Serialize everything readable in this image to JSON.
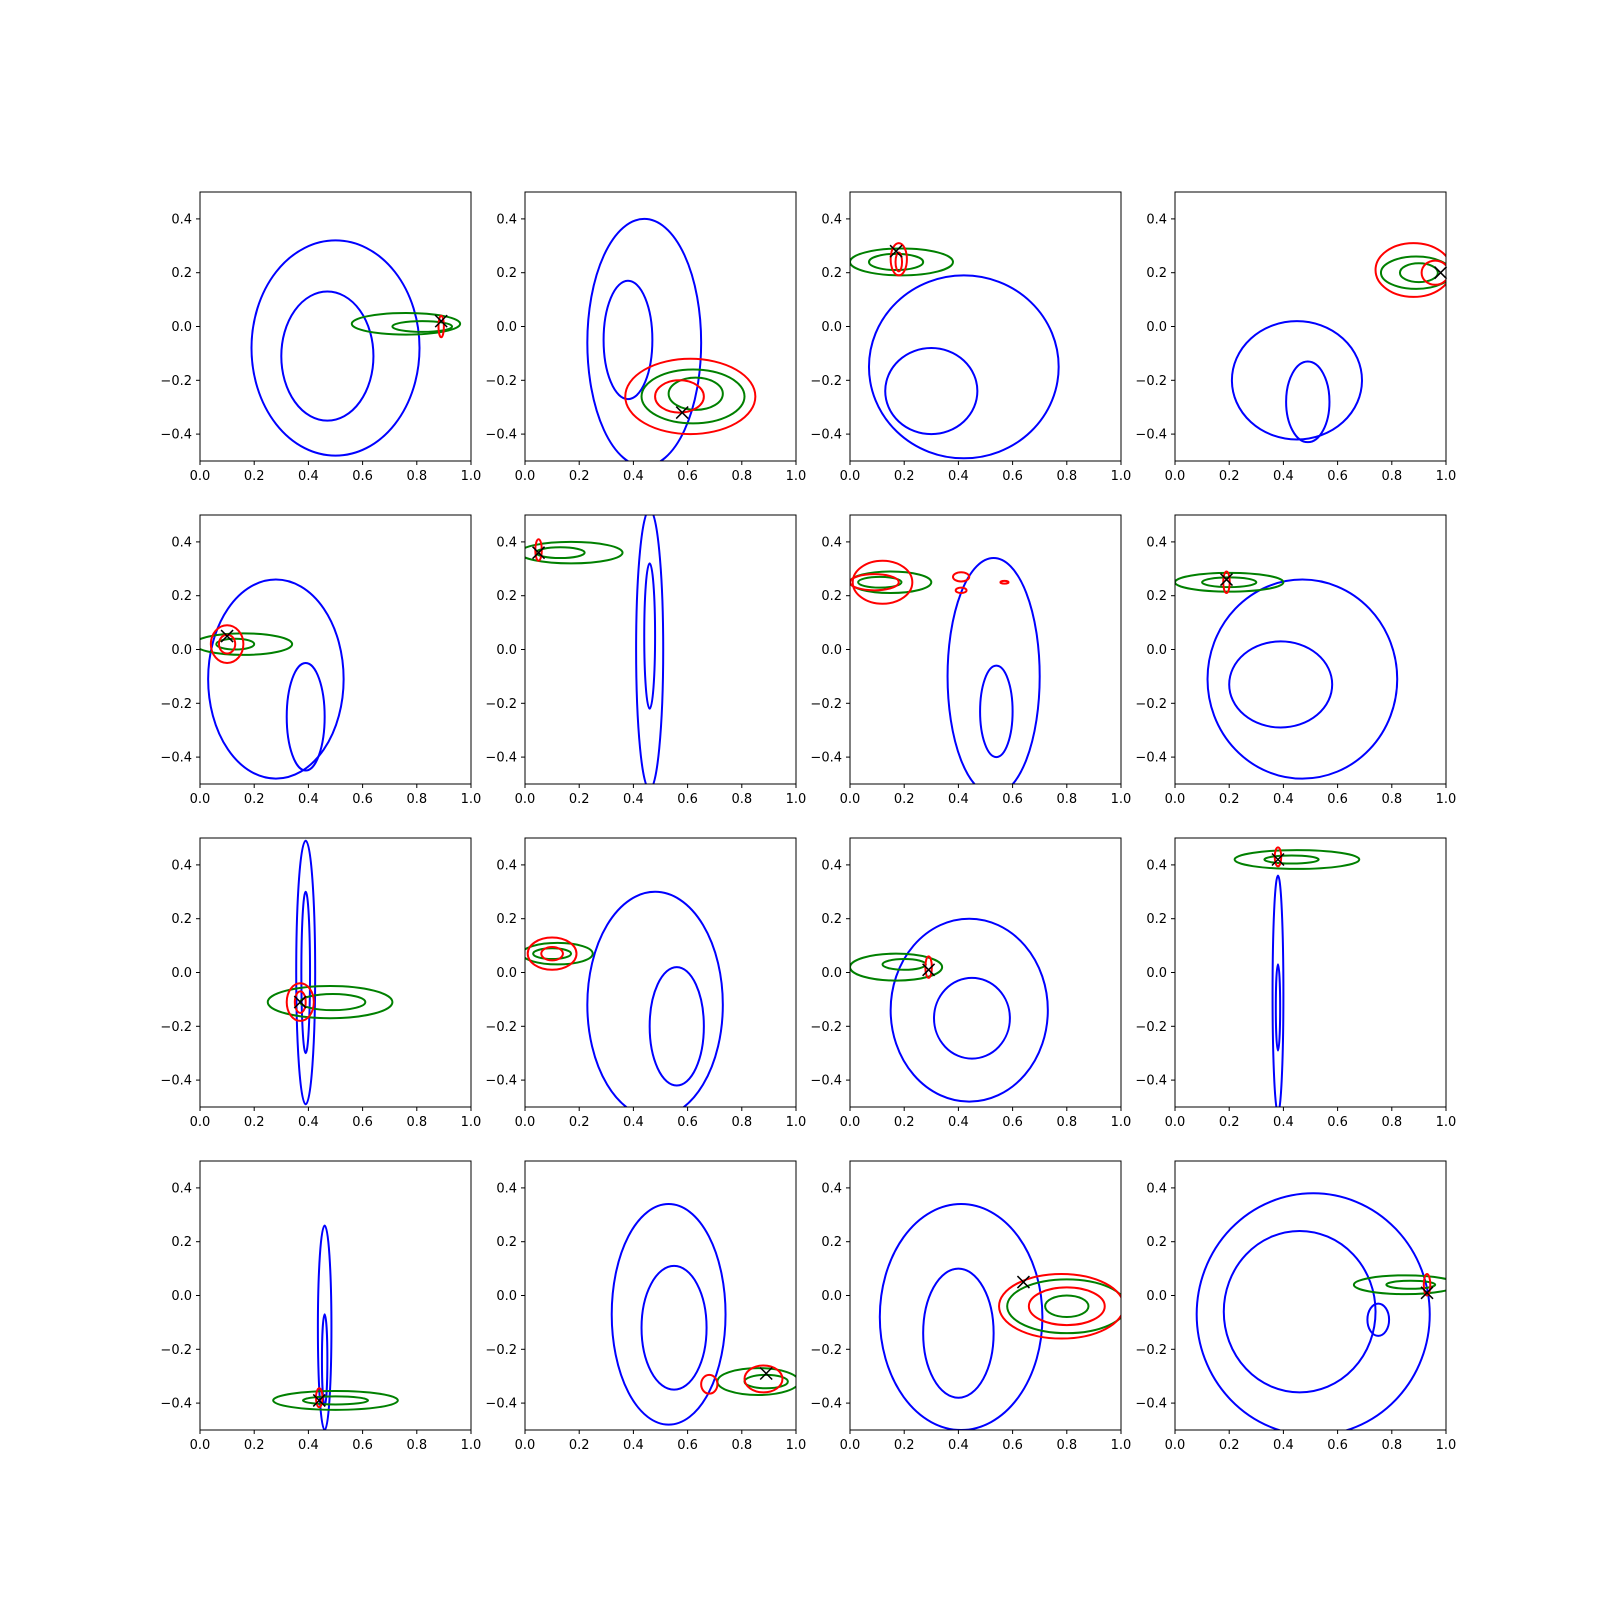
{
  "figure": {
    "rows": 4,
    "cols": 4
  },
  "axes": {
    "xlim": [
      0,
      1
    ],
    "ylim": [
      -0.5,
      0.5
    ],
    "xticks": [
      0.0,
      0.2,
      0.4,
      0.6,
      0.8,
      1.0
    ],
    "yticks": [
      -0.4,
      -0.2,
      0.0,
      0.2,
      0.4
    ],
    "xtick_labels": [
      "0.0",
      "0.2",
      "0.4",
      "0.6",
      "0.8",
      "1.0"
    ],
    "ytick_labels": [
      "−0.4",
      "−0.2",
      "0.0",
      "0.2",
      "0.4"
    ]
  },
  "colors": {
    "blue": "#0000ff",
    "green": "#008000",
    "red": "#ff0000",
    "marker": "#000000"
  },
  "chart_data": [
    {
      "type": "contour",
      "marker": [
        0.89,
        0.02
      ],
      "blue": [
        {
          "cx": 0.5,
          "cy": -0.08,
          "rx": 0.31,
          "ry": 0.4
        },
        {
          "cx": 0.47,
          "cy": -0.11,
          "rx": 0.17,
          "ry": 0.24
        }
      ],
      "green": [
        {
          "cx": 0.76,
          "cy": 0.01,
          "rx": 0.2,
          "ry": 0.04
        },
        {
          "cx": 0.82,
          "cy": 0.0,
          "rx": 0.11,
          "ry": 0.02
        }
      ],
      "red": [
        {
          "cx": 0.89,
          "cy": 0.0,
          "rx": 0.01,
          "ry": 0.04
        }
      ]
    },
    {
      "type": "contour",
      "marker": [
        0.58,
        -0.32
      ],
      "blue": [
        {
          "cx": 0.44,
          "cy": -0.06,
          "rx": 0.21,
          "ry": 0.46
        },
        {
          "cx": 0.38,
          "cy": -0.05,
          "rx": 0.09,
          "ry": 0.22
        }
      ],
      "green": [
        {
          "cx": 0.62,
          "cy": -0.26,
          "rx": 0.19,
          "ry": 0.1
        },
        {
          "cx": 0.63,
          "cy": -0.25,
          "rx": 0.1,
          "ry": 0.06
        }
      ],
      "red": [
        {
          "cx": 0.61,
          "cy": -0.26,
          "rx": 0.24,
          "ry": 0.14
        },
        {
          "cx": 0.57,
          "cy": -0.26,
          "rx": 0.09,
          "ry": 0.06
        }
      ]
    },
    {
      "type": "contour",
      "marker": [
        0.17,
        0.28
      ],
      "blue": [
        {
          "cx": 0.42,
          "cy": -0.15,
          "rx": 0.35,
          "ry": 0.34
        },
        {
          "cx": 0.3,
          "cy": -0.24,
          "rx": 0.17,
          "ry": 0.16
        }
      ],
      "green": [
        {
          "cx": 0.19,
          "cy": 0.24,
          "rx": 0.19,
          "ry": 0.05
        },
        {
          "cx": 0.17,
          "cy": 0.24,
          "rx": 0.1,
          "ry": 0.03
        }
      ],
      "red": [
        {
          "cx": 0.18,
          "cy": 0.25,
          "rx": 0.03,
          "ry": 0.06
        },
        {
          "cx": 0.18,
          "cy": 0.24,
          "rx": 0.012,
          "ry": 0.035
        }
      ]
    },
    {
      "type": "contour",
      "marker": [
        0.98,
        0.2
      ],
      "blue": [
        {
          "cx": 0.45,
          "cy": -0.2,
          "rx": 0.24,
          "ry": 0.22
        },
        {
          "cx": 0.49,
          "cy": -0.28,
          "rx": 0.08,
          "ry": 0.15
        }
      ],
      "green": [
        {
          "cx": 0.89,
          "cy": 0.2,
          "rx": 0.13,
          "ry": 0.06
        },
        {
          "cx": 0.9,
          "cy": 0.2,
          "rx": 0.07,
          "ry": 0.035
        }
      ],
      "red": [
        {
          "cx": 0.88,
          "cy": 0.21,
          "rx": 0.14,
          "ry": 0.1
        },
        {
          "cx": 0.96,
          "cy": 0.2,
          "rx": 0.05,
          "ry": 0.045
        }
      ]
    },
    {
      "type": "contour",
      "marker": [
        0.1,
        0.05
      ],
      "blue": [
        {
          "cx": 0.28,
          "cy": -0.11,
          "rx": 0.25,
          "ry": 0.37
        },
        {
          "cx": 0.39,
          "cy": -0.25,
          "rx": 0.07,
          "ry": 0.2
        }
      ],
      "green": [
        {
          "cx": 0.16,
          "cy": 0.02,
          "rx": 0.18,
          "ry": 0.04
        },
        {
          "cx": 0.13,
          "cy": 0.02,
          "rx": 0.07,
          "ry": 0.02
        }
      ],
      "red": [
        {
          "cx": 0.1,
          "cy": 0.02,
          "rx": 0.06,
          "ry": 0.07
        },
        {
          "cx": 0.1,
          "cy": 0.02,
          "rx": 0.03,
          "ry": 0.035
        }
      ]
    },
    {
      "type": "contour",
      "marker": [
        0.05,
        0.36
      ],
      "blue": [
        {
          "cx": 0.46,
          "cy": 0.0,
          "rx": 0.05,
          "ry": 0.52
        },
        {
          "cx": 0.46,
          "cy": 0.05,
          "rx": 0.02,
          "ry": 0.27
        }
      ],
      "green": [
        {
          "cx": 0.17,
          "cy": 0.36,
          "rx": 0.19,
          "ry": 0.04
        },
        {
          "cx": 0.13,
          "cy": 0.36,
          "rx": 0.09,
          "ry": 0.02
        }
      ],
      "red": [
        {
          "cx": 0.05,
          "cy": 0.37,
          "rx": 0.012,
          "ry": 0.04
        }
      ]
    },
    {
      "type": "contour",
      "marker": null,
      "blue": [
        {
          "cx": 0.53,
          "cy": -0.1,
          "rx": 0.17,
          "ry": 0.44
        },
        {
          "cx": 0.54,
          "cy": -0.23,
          "rx": 0.06,
          "ry": 0.17
        }
      ],
      "green": [
        {
          "cx": 0.15,
          "cy": 0.25,
          "rx": 0.15,
          "ry": 0.04
        },
        {
          "cx": 0.11,
          "cy": 0.25,
          "rx": 0.08,
          "ry": 0.02
        }
      ],
      "red": [
        {
          "cx": 0.12,
          "cy": 0.25,
          "rx": 0.11,
          "ry": 0.08
        },
        {
          "cx": 0.09,
          "cy": 0.25,
          "rx": 0.09,
          "ry": 0.03
        },
        {
          "cx": 0.41,
          "cy": 0.27,
          "rx": 0.03,
          "ry": 0.017
        },
        {
          "cx": 0.41,
          "cy": 0.22,
          "rx": 0.02,
          "ry": 0.01
        },
        {
          "cx": 0.57,
          "cy": 0.25,
          "rx": 0.015,
          "ry": 0.005
        }
      ]
    },
    {
      "type": "contour",
      "marker": [
        0.19,
        0.26
      ],
      "blue": [
        {
          "cx": 0.47,
          "cy": -0.11,
          "rx": 0.35,
          "ry": 0.37
        },
        {
          "cx": 0.39,
          "cy": -0.13,
          "rx": 0.19,
          "ry": 0.16
        }
      ],
      "green": [
        {
          "cx": 0.2,
          "cy": 0.25,
          "rx": 0.2,
          "ry": 0.035
        },
        {
          "cx": 0.2,
          "cy": 0.25,
          "rx": 0.1,
          "ry": 0.018
        }
      ],
      "red": [
        {
          "cx": 0.19,
          "cy": 0.25,
          "rx": 0.012,
          "ry": 0.04
        }
      ]
    },
    {
      "type": "contour",
      "marker": [
        0.37,
        -0.11
      ],
      "blue": [
        {
          "cx": 0.39,
          "cy": 0.0,
          "rx": 0.035,
          "ry": 0.49
        },
        {
          "cx": 0.39,
          "cy": 0.0,
          "rx": 0.016,
          "ry": 0.3
        }
      ],
      "green": [
        {
          "cx": 0.48,
          "cy": -0.11,
          "rx": 0.23,
          "ry": 0.06
        },
        {
          "cx": 0.49,
          "cy": -0.11,
          "rx": 0.12,
          "ry": 0.03
        }
      ],
      "red": [
        {
          "cx": 0.37,
          "cy": -0.11,
          "rx": 0.05,
          "ry": 0.07
        },
        {
          "cx": 0.37,
          "cy": -0.11,
          "rx": 0.02,
          "ry": 0.04
        }
      ]
    },
    {
      "type": "contour",
      "marker": null,
      "blue": [
        {
          "cx": 0.48,
          "cy": -0.12,
          "rx": 0.25,
          "ry": 0.42
        },
        {
          "cx": 0.56,
          "cy": -0.2,
          "rx": 0.1,
          "ry": 0.22
        }
      ],
      "green": [
        {
          "cx": 0.12,
          "cy": 0.07,
          "rx": 0.13,
          "ry": 0.04
        },
        {
          "cx": 0.1,
          "cy": 0.07,
          "rx": 0.07,
          "ry": 0.02
        }
      ],
      "red": [
        {
          "cx": 0.1,
          "cy": 0.07,
          "rx": 0.09,
          "ry": 0.06
        },
        {
          "cx": 0.1,
          "cy": 0.07,
          "rx": 0.04,
          "ry": 0.025
        }
      ]
    },
    {
      "type": "contour",
      "marker": [
        0.29,
        0.01
      ],
      "blue": [
        {
          "cx": 0.44,
          "cy": -0.14,
          "rx": 0.29,
          "ry": 0.34
        },
        {
          "cx": 0.45,
          "cy": -0.17,
          "rx": 0.14,
          "ry": 0.15
        }
      ],
      "green": [
        {
          "cx": 0.17,
          "cy": 0.02,
          "rx": 0.17,
          "ry": 0.05
        },
        {
          "cx": 0.2,
          "cy": 0.03,
          "rx": 0.08,
          "ry": 0.02
        }
      ],
      "red": [
        {
          "cx": 0.29,
          "cy": 0.02,
          "rx": 0.012,
          "ry": 0.04
        }
      ]
    },
    {
      "type": "contour",
      "marker": [
        0.38,
        0.42
      ],
      "blue": [
        {
          "cx": 0.38,
          "cy": -0.08,
          "rx": 0.02,
          "ry": 0.44
        },
        {
          "cx": 0.38,
          "cy": -0.13,
          "rx": 0.008,
          "ry": 0.16
        }
      ],
      "green": [
        {
          "cx": 0.45,
          "cy": 0.42,
          "rx": 0.23,
          "ry": 0.035
        },
        {
          "cx": 0.43,
          "cy": 0.42,
          "rx": 0.1,
          "ry": 0.015
        }
      ],
      "red": [
        {
          "cx": 0.38,
          "cy": 0.43,
          "rx": 0.012,
          "ry": 0.035
        }
      ]
    },
    {
      "type": "contour",
      "marker": [
        0.44,
        -0.39
      ],
      "blue": [
        {
          "cx": 0.46,
          "cy": -0.12,
          "rx": 0.025,
          "ry": 0.38
        },
        {
          "cx": 0.46,
          "cy": -0.24,
          "rx": 0.01,
          "ry": 0.17
        }
      ],
      "green": [
        {
          "cx": 0.5,
          "cy": -0.39,
          "rx": 0.23,
          "ry": 0.035
        },
        {
          "cx": 0.5,
          "cy": -0.39,
          "rx": 0.12,
          "ry": 0.015
        }
      ],
      "red": [
        {
          "cx": 0.44,
          "cy": -0.38,
          "rx": 0.012,
          "ry": 0.035
        }
      ]
    },
    {
      "type": "contour",
      "marker": [
        0.89,
        -0.29
      ],
      "blue": [
        {
          "cx": 0.53,
          "cy": -0.07,
          "rx": 0.21,
          "ry": 0.41
        },
        {
          "cx": 0.55,
          "cy": -0.12,
          "rx": 0.12,
          "ry": 0.23
        }
      ],
      "green": [
        {
          "cx": 0.86,
          "cy": -0.32,
          "rx": 0.15,
          "ry": 0.05
        },
        {
          "cx": 0.89,
          "cy": -0.32,
          "rx": 0.08,
          "ry": 0.025
        }
      ],
      "red": [
        {
          "cx": 0.88,
          "cy": -0.31,
          "rx": 0.07,
          "ry": 0.05
        },
        {
          "cx": 0.68,
          "cy": -0.33,
          "rx": 0.03,
          "ry": 0.035
        }
      ]
    },
    {
      "type": "contour",
      "marker": [
        0.64,
        0.05
      ],
      "blue": [
        {
          "cx": 0.41,
          "cy": -0.08,
          "rx": 0.3,
          "ry": 0.42
        },
        {
          "cx": 0.4,
          "cy": -0.14,
          "rx": 0.13,
          "ry": 0.24
        }
      ],
      "green": [
        {
          "cx": 0.8,
          "cy": -0.04,
          "rx": 0.22,
          "ry": 0.1
        },
        {
          "cx": 0.8,
          "cy": -0.04,
          "rx": 0.08,
          "ry": 0.04
        }
      ],
      "red": [
        {
          "cx": 0.78,
          "cy": -0.04,
          "rx": 0.23,
          "ry": 0.12
        },
        {
          "cx": 0.8,
          "cy": -0.04,
          "rx": 0.14,
          "ry": 0.07
        }
      ]
    },
    {
      "type": "contour",
      "marker": [
        0.93,
        0.01
      ],
      "blue": [
        {
          "cx": 0.51,
          "cy": -0.07,
          "rx": 0.43,
          "ry": 0.45
        },
        {
          "cx": 0.46,
          "cy": -0.06,
          "rx": 0.28,
          "ry": 0.3
        },
        {
          "cx": 0.75,
          "cy": -0.09,
          "rx": 0.04,
          "ry": 0.06
        }
      ],
      "green": [
        {
          "cx": 0.85,
          "cy": 0.04,
          "rx": 0.19,
          "ry": 0.035
        },
        {
          "cx": 0.87,
          "cy": 0.04,
          "rx": 0.09,
          "ry": 0.015
        }
      ],
      "red": [
        {
          "cx": 0.93,
          "cy": 0.04,
          "rx": 0.012,
          "ry": 0.04
        }
      ]
    }
  ]
}
